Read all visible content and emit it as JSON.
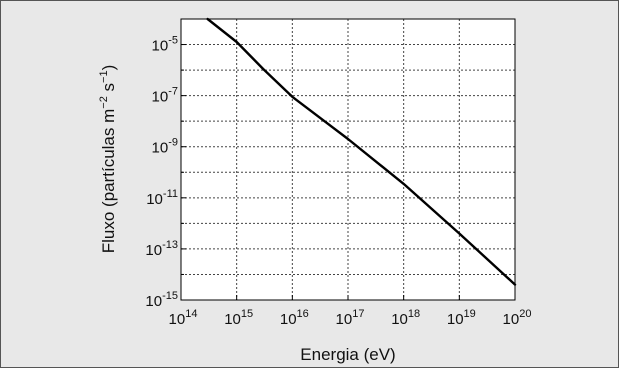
{
  "chart_data": {
    "type": "line",
    "title": "",
    "xlabel": "Energia (eV)",
    "ylabel": {
      "prefix": "Fluxo (partículas m",
      "exp1": "−2",
      "middle": " s",
      "exp2": "−1",
      "suffix": ")"
    },
    "x_scale": "log",
    "y_scale": "log",
    "xlim": [
      100000000000000.0,
      1e+20
    ],
    "ylim": [
      1e-15,
      0.0001
    ],
    "grid": true,
    "x_ticks": [
      {
        "value": 100000000000000.0,
        "base": "10",
        "exp": "14"
      },
      {
        "value": 1000000000000000.0,
        "base": "10",
        "exp": "15"
      },
      {
        "value": 1e+16,
        "base": "10",
        "exp": "16"
      },
      {
        "value": 1e+17,
        "base": "10",
        "exp": "17"
      },
      {
        "value": 1e+18,
        "base": "10",
        "exp": "18"
      },
      {
        "value": 1e+19,
        "base": "10",
        "exp": "19"
      },
      {
        "value": 1e+20,
        "base": "10",
        "exp": "20"
      }
    ],
    "y_ticks": [
      {
        "value": 1e-15,
        "base": "10",
        "exp": "-15"
      },
      {
        "value": 1e-13,
        "base": "10",
        "exp": "-13"
      },
      {
        "value": 1e-11,
        "base": "10",
        "exp": "-11"
      },
      {
        "value": 1e-09,
        "base": "10",
        "exp": "-9"
      },
      {
        "value": 1e-07,
        "base": "10",
        "exp": "-7"
      },
      {
        "value": 1e-05,
        "base": "10",
        "exp": "-5"
      }
    ],
    "y_minor_ticks": [
      1e-14,
      1e-12,
      1e-10,
      1e-08,
      1e-06
    ],
    "series": [
      {
        "x": [
          300000000000000.0,
          1000000000000000.0,
          3000000000000000.0,
          1e+16,
          1e+17,
          1e+18,
          1e+19,
          1e+20
        ],
        "y": [
          0.0001,
          1.26e-05,
          1.1e-06,
          9e-08,
          2e-09,
          3.5e-11,
          4e-13,
          4e-15
        ]
      }
    ]
  },
  "colors": {
    "background": "#e8e8e8",
    "plot_area": "#ffffff",
    "curve": "#000000"
  }
}
